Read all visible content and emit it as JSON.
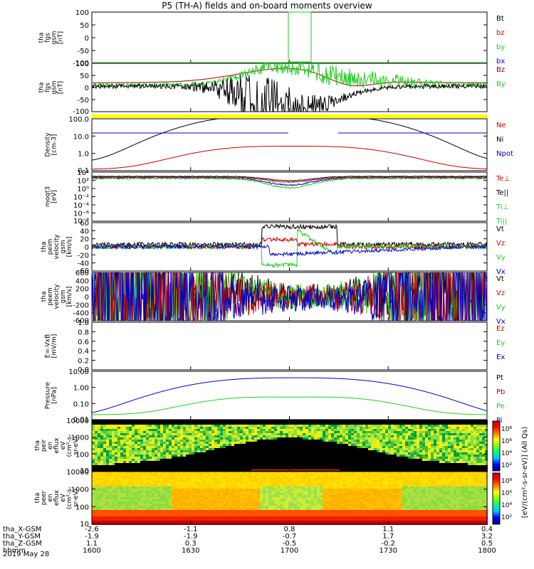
{
  "title": "P5 (TH-A) fields and on-board moments overview",
  "chart_data": {
    "type": "line",
    "date": "2019 May 28",
    "time_ticks": [
      "1600",
      "1630",
      "1700",
      "1730",
      "1800"
    ],
    "orbit_rows": [
      {
        "label": "tha_X-GSM",
        "values": [
          "-2.6",
          "-1.1",
          "0.8",
          "1.1",
          "0.4"
        ]
      },
      {
        "label": "tha_Y-GSM",
        "values": [
          "-1.9",
          "-1.9",
          "-0.7",
          "1.7",
          "3.2"
        ]
      },
      {
        "label": "tha_Z-GSM",
        "values": [
          "1.1",
          "0.3",
          "-0.5",
          "-0.2",
          "0.5"
        ]
      },
      {
        "label": "hhmm",
        "values": [
          "1600",
          "1630",
          "1700",
          "1730",
          "1800"
        ]
      }
    ],
    "panels": [
      {
        "ylabel": [
          "tha",
          "fgs",
          "gsm",
          "[nT]"
        ],
        "ticks": [
          "100",
          "50",
          "0",
          "-50",
          "-100"
        ],
        "legend": [
          {
            "text": "Bt",
            "color": "#000000"
          },
          {
            "text": "bz",
            "color": "#cc0000"
          },
          {
            "text": "by",
            "color": "#22cc22"
          },
          {
            "text": "bx",
            "color": "#0000cc"
          }
        ]
      },
      {
        "ylabel": [
          "tha",
          "fgs",
          "gsm",
          "[nT]"
        ],
        "ticks": [
          "100",
          "50",
          "0",
          "-50",
          "-100"
        ],
        "legend": [
          {
            "text": "Bz",
            "color": "#990000"
          },
          {
            "text": "By",
            "color": "#22cc22"
          }
        ]
      },
      {
        "ylabel": [
          "Density",
          "[cm-3]"
        ],
        "ticks": [
          "100.0",
          "10.0",
          "1.0",
          "0.1"
        ],
        "legend": [
          {
            "text": "Ne",
            "color": "#cc0000"
          },
          {
            "text": "Ni",
            "color": "#000000"
          },
          {
            "text": "Npot",
            "color": "#0000cc"
          }
        ]
      },
      {
        "ylabel": [
          "moqt3",
          "[eV]"
        ],
        "ticks": [
          "10⁴",
          "10²",
          "10⁰",
          "10⁻²",
          "10⁻⁴",
          "10⁻⁶",
          "10⁻⁸"
        ],
        "legend": [
          {
            "text": "Te⊥",
            "color": "#cc0000"
          },
          {
            "text": "Te||",
            "color": "#000000"
          },
          {
            "text": "Ti⊥",
            "color": "#22cc22"
          },
          {
            "text": "Ti||",
            "color": "#22cc22"
          }
        ]
      },
      {
        "ylabel": [
          "tha",
          "peim",
          "velocity",
          "gsm",
          "[km/s]"
        ],
        "ticks": [
          "60",
          "40",
          "20",
          "0",
          "-20",
          "-40",
          "-60"
        ],
        "legend": [
          {
            "text": "Vt",
            "color": "#000000"
          },
          {
            "text": "Vz",
            "color": "#cc0000"
          },
          {
            "text": "Vy",
            "color": "#22cc22"
          },
          {
            "text": "Vx",
            "color": "#0000cc"
          }
        ]
      },
      {
        "ylabel": [
          "tha",
          "peem",
          "velocity",
          "gsm",
          "[km/s]"
        ],
        "ticks": [
          "600",
          "400",
          "200",
          "0",
          "-200",
          "-400",
          "-600"
        ],
        "legend": [
          {
            "text": "Vt",
            "color": "#000000"
          },
          {
            "text": "Vz",
            "color": "#cc0000"
          },
          {
            "text": "Vy",
            "color": "#22cc22"
          },
          {
            "text": "Vx",
            "color": "#0000cc"
          }
        ]
      },
      {
        "ylabel": [
          "E=-VxB",
          "[mV/m]"
        ],
        "ticks": [
          "1.0",
          "0.8",
          "0.6",
          "0.4",
          "0.2",
          "0.0"
        ],
        "legend": [
          {
            "text": "Ez",
            "color": "#cc0000"
          },
          {
            "text": "Ey",
            "color": "#22cc22"
          },
          {
            "text": "Ex",
            "color": "#0000cc"
          }
        ]
      },
      {
        "ylabel": [
          "Pressure",
          "[nPa]"
        ],
        "ticks": [
          "10.00",
          "1.00",
          "0.10",
          "0.01"
        ],
        "legend": [
          {
            "text": "Pt",
            "color": "#000000"
          },
          {
            "text": "Pb",
            "color": "#cc0000"
          },
          {
            "text": "Pe",
            "color": "#22cc22"
          },
          {
            "text": "Pi",
            "color": "#0000cc"
          }
        ]
      },
      {
        "ylabel": [
          "tha",
          "peir",
          "en",
          "eflux",
          "eV",
          "(cm²-s-",
          "sr-eV)"
        ],
        "ticks": [
          "10000",
          "1000",
          "100",
          "10"
        ],
        "legend": []
      },
      {
        "ylabel": [
          "tha",
          "peer",
          "en",
          "eflux",
          "eV",
          "(cm²-s-",
          "sr-eV)"
        ],
        "ticks": [
          "10000",
          "1000",
          "100",
          "10"
        ],
        "legend": []
      }
    ],
    "colorbar_label": "[eV/(cm²-s-sr-eV)] (All Qs)",
    "colorbar_ticks": [
      "10⁸",
      "10⁶",
      "10⁴",
      "10²",
      "10⁸",
      "10⁶",
      "10⁴",
      "10²"
    ],
    "series_colors": {
      "black": "#000000",
      "red": "#cc0000",
      "green": "#22cc22",
      "blue": "#0000cc",
      "yellow": "#ffff00"
    }
  }
}
